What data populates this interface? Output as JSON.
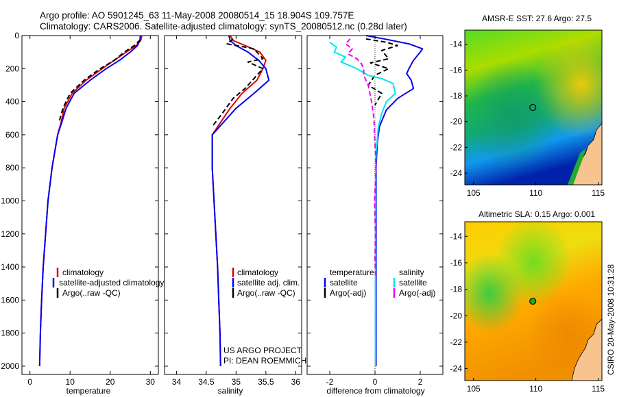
{
  "title": {
    "line1": "Argo profile: AO 5901245_63 11-May-2008 20080514_15 18.904S 109.757E",
    "line2": "Climatology: CARS2006. Satellite-adjusted climatology: synTS_20080512.nc (0.28d later)"
  },
  "colors": {
    "climatology": "#dd0000",
    "satellite": "#0000ee",
    "argo": "#000000",
    "salinity_satellite": "#00e5ee",
    "salinity_argo": "#ee00ee",
    "marker": "#000000",
    "land": "#f7c38f"
  },
  "chart_data": [
    {
      "type": "line",
      "id": "temperature-profile",
      "xlabel": "temperature",
      "ylabel": "",
      "xlim": [
        -2,
        32
      ],
      "ylim": [
        2050,
        0
      ],
      "xticks": [
        "0",
        "10",
        "20",
        "30"
      ],
      "yticks": [
        "0",
        "200",
        "400",
        "600",
        "800",
        "1000",
        "1200",
        "1400",
        "1600",
        "1800",
        "2000"
      ],
      "y_reversed": true,
      "legend_position": "lower-right",
      "legend": [
        "climatology",
        "satellite-adjusted climatology",
        "Argo(..raw -QC)"
      ],
      "series": [
        {
          "name": "climatology",
          "color": "#dd0000",
          "dash": "solid",
          "x": [
            27.9,
            27.6,
            26.5,
            24.0,
            21.0,
            18.0,
            14.0,
            10.5,
            8.5,
            7.8,
            6.9,
            5.5,
            4.5,
            3.9,
            3.3,
            2.9,
            2.6,
            2.4
          ],
          "y": [
            0,
            30,
            60,
            100,
            150,
            200,
            270,
            350,
            440,
            520,
            600,
            800,
            1000,
            1200,
            1400,
            1600,
            1800,
            2000
          ]
        },
        {
          "name": "satellite-adjusted climatology",
          "color": "#0000ee",
          "dash": "solid",
          "x": [
            27.5,
            27.4,
            26.8,
            25.0,
            22.3,
            19.0,
            15.0,
            11.0,
            9.0,
            8.0,
            6.9,
            5.5,
            4.5,
            3.9,
            3.3,
            2.9,
            2.6,
            2.4
          ],
          "y": [
            0,
            30,
            60,
            100,
            150,
            200,
            270,
            350,
            440,
            520,
            600,
            800,
            1000,
            1200,
            1400,
            1600,
            1800,
            2000
          ]
        },
        {
          "name": "Argo(..raw -QC)",
          "color": "#000000",
          "dash": "dashed",
          "x": [
            27.5,
            26.0,
            23.5,
            21.0,
            17.5,
            13.5,
            10.0,
            8.2,
            7.3
          ],
          "y": [
            25,
            60,
            100,
            150,
            200,
            270,
            350,
            440,
            520
          ]
        }
      ]
    },
    {
      "type": "line",
      "id": "salinity-profile",
      "xlabel": "salinity",
      "ylabel": "",
      "xlim": [
        33.8,
        36.1
      ],
      "ylim": [
        2050,
        0
      ],
      "xticks": [
        "34",
        "34.5",
        "35",
        "35.5",
        "36"
      ],
      "y_reversed": true,
      "legend_position": "lower-right",
      "legend": [
        "climatology",
        "satellite adj. clim.",
        "Argo(..raw -QC)"
      ],
      "annotations": [
        "US ARGO PROJECT",
        "PI: DEAN ROEMMICH"
      ],
      "series": [
        {
          "name": "climatology",
          "color": "#dd0000",
          "dash": "solid",
          "x": [
            34.9,
            34.95,
            35.15,
            35.4,
            35.5,
            35.45,
            35.35,
            35.1,
            34.9,
            34.75,
            34.6,
            34.6,
            34.63,
            34.66,
            34.69,
            34.71,
            34.73,
            34.74
          ],
          "y": [
            0,
            30,
            60,
            100,
            150,
            200,
            270,
            350,
            440,
            520,
            600,
            800,
            1000,
            1200,
            1400,
            1600,
            1800,
            2000
          ]
        },
        {
          "name": "satellite adj. clim.",
          "color": "#0000ee",
          "dash": "solid",
          "x": [
            34.88,
            34.9,
            35.0,
            35.2,
            35.38,
            35.5,
            35.55,
            35.3,
            35.0,
            34.8,
            34.6,
            34.6,
            34.63,
            34.66,
            34.69,
            34.71,
            34.73,
            34.74
          ],
          "y": [
            0,
            30,
            60,
            100,
            150,
            200,
            270,
            350,
            440,
            520,
            600,
            800,
            1000,
            1200,
            1400,
            1600,
            1800,
            2000
          ]
        },
        {
          "name": "Argo(..raw -QC)",
          "color": "#000000",
          "dash": "dashed",
          "x": [
            34.95,
            34.85,
            35.3,
            35.45,
            35.2,
            35.45,
            35.15,
            34.95,
            34.75,
            34.6
          ],
          "y": [
            20,
            50,
            80,
            140,
            160,
            200,
            320,
            380,
            480,
            550
          ]
        }
      ]
    },
    {
      "type": "line",
      "id": "difference-profile",
      "xlabel": "difference from climatology",
      "ylabel": "",
      "xlim": [
        -3,
        3
      ],
      "ylim": [
        2050,
        0
      ],
      "xticks": [
        "-2",
        "0",
        "2"
      ],
      "y_reversed": true,
      "zero_line": true,
      "legend_position": "lower",
      "legend_columns": [
        {
          "heading": "temperature",
          "items": [
            "satellite",
            "Argo(-adj)"
          ]
        },
        {
          "heading": "salinity",
          "items": [
            "satellite",
            "Argo(-adj)"
          ]
        }
      ],
      "series": [
        {
          "name": "temperature satellite",
          "color": "#0000ee",
          "dash": "solid",
          "x": [
            -0.4,
            0.4,
            1.5,
            2.1,
            2.0,
            1.7,
            1.5,
            1.4,
            1.6,
            1.7,
            1.0,
            0.5,
            0.2,
            0.1,
            0.05,
            0.05,
            0.05,
            0.05,
            0.05,
            0.05
          ],
          "y": [
            0,
            20,
            50,
            80,
            100,
            150,
            200,
            230,
            270,
            320,
            380,
            450,
            550,
            650,
            800,
            1000,
            1200,
            1500,
            1800,
            2000
          ]
        },
        {
          "name": "temperature Argo(-adj)",
          "color": "#000000",
          "dash": "dashed",
          "x": [
            -0.4,
            0.5,
            1.0,
            0.3,
            0.6,
            -0.2,
            0.6,
            0.0,
            -0.3,
            0.3,
            0.0
          ],
          "y": [
            20,
            40,
            60,
            90,
            140,
            165,
            200,
            240,
            300,
            350,
            420
          ]
        },
        {
          "name": "salinity satellite",
          "color": "#00e5ee",
          "dash": "solid",
          "x": [
            -2.0,
            -1.7,
            -1.8,
            -1.3,
            -1.5,
            -0.8,
            -0.3,
            0.3,
            0.8,
            0.9,
            0.5,
            0.3,
            0.15,
            0.05,
            0.02,
            0.02,
            0.02,
            0.02
          ],
          "y": [
            40,
            70,
            100,
            130,
            160,
            200,
            240,
            260,
            290,
            350,
            400,
            470,
            550,
            700,
            900,
            1200,
            1600,
            2000
          ]
        },
        {
          "name": "salinity Argo(-adj)",
          "color": "#ee00ee",
          "dash": "dashed",
          "x": [
            -1.1,
            -1.3,
            -1.0,
            -1.2,
            -0.8,
            -0.6,
            -0.5,
            -0.5,
            -0.3,
            -0.15,
            -0.05,
            0.0,
            0.05,
            -0.02,
            0.02,
            0.0,
            0.02
          ],
          "y": [
            20,
            50,
            80,
            110,
            140,
            170,
            200,
            240,
            300,
            400,
            500,
            650,
            800,
            1000,
            1200,
            1350,
            1450
          ]
        }
      ]
    },
    {
      "type": "heatmap",
      "id": "sst-map",
      "title": "AMSR-E SST: 27.6 Argo: 27.5",
      "xlim": [
        104.3,
        115.3
      ],
      "ylim": [
        -24.9,
        -12.9
      ],
      "xticks": [
        "105",
        "110",
        "115"
      ],
      "yticks": [
        "-14",
        "-16",
        "-18",
        "-20",
        "-22",
        "-24"
      ],
      "marker": {
        "lon": 109.757,
        "lat": -18.904,
        "fill": "none"
      }
    },
    {
      "type": "heatmap",
      "id": "sla-map",
      "title": "Altimetric SLA: 0.15 Argo: 0.001",
      "xlim": [
        104.3,
        115.3
      ],
      "ylim": [
        -24.9,
        -12.9
      ],
      "xticks": [
        "105",
        "110",
        "115"
      ],
      "yticks": [
        "-14",
        "-16",
        "-18",
        "-20",
        "-22",
        "-24"
      ],
      "marker": {
        "lon": 109.757,
        "lat": -18.904,
        "fill": "#22aa22"
      }
    }
  ],
  "side_label": "CSIRO 20-May-2008 10:31:28"
}
